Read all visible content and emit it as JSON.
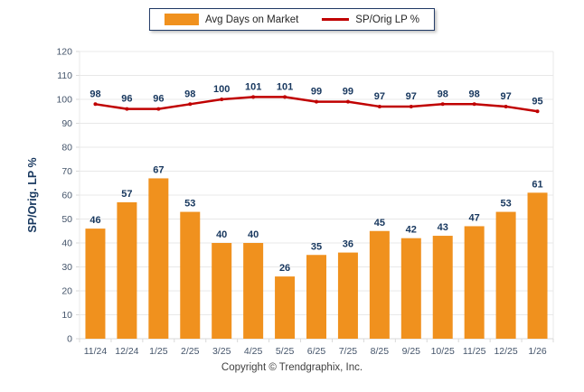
{
  "chart_data": {
    "type": "combo",
    "categories": [
      "11/24",
      "12/24",
      "1/25",
      "2/25",
      "3/25",
      "4/25",
      "5/25",
      "6/25",
      "7/25",
      "8/25",
      "9/25",
      "10/25",
      "11/25",
      "12/25",
      "1/26"
    ],
    "series": [
      {
        "name": "Avg Days on Market",
        "type": "bar",
        "color": "#F0911E",
        "values": [
          46,
          57,
          67,
          53,
          40,
          40,
          26,
          35,
          36,
          45,
          42,
          43,
          47,
          53,
          61
        ]
      },
      {
        "name": "SP/Orig LP %",
        "type": "line",
        "color": "#C00000",
        "values": [
          98,
          96,
          96,
          98,
          100,
          101,
          101,
          99,
          99,
          97,
          97,
          98,
          98,
          97,
          95
        ]
      }
    ],
    "title": "",
    "xlabel": "",
    "ylabel": "SP/Orig. LP %",
    "ylim": [
      0,
      120
    ],
    "ytick_step": 10,
    "grid": true,
    "legend_position": "top",
    "label_color": "#17375E",
    "tick_color": "#44546A",
    "grid_color": "#E8E8E8",
    "axis_color": "#D9D9D9"
  },
  "footer": {
    "copyright": "Copyright © Trendgraphix, Inc."
  }
}
